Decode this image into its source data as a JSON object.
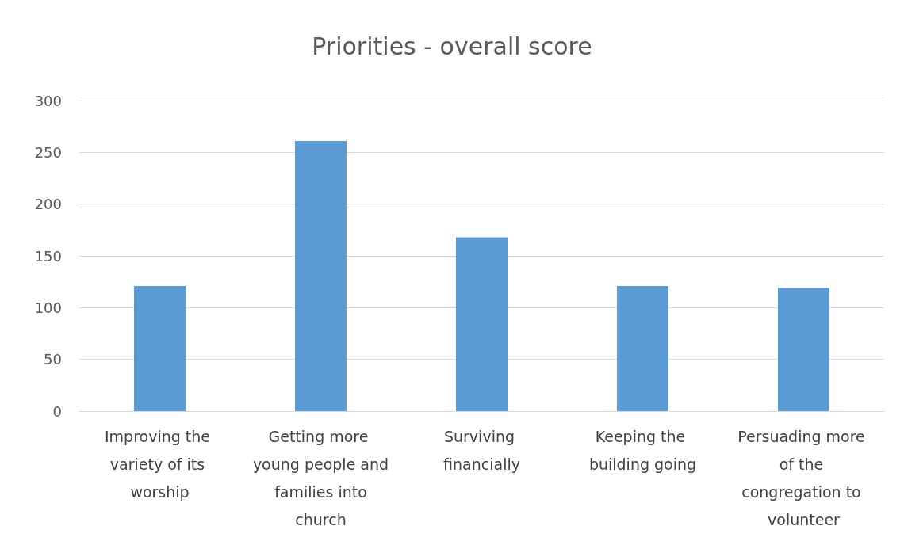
{
  "chart_data": {
    "type": "bar",
    "title": "Priorities - overall score",
    "categories": [
      "Improving the variety of its worship",
      "Getting more young people and families into church",
      "Surviving financially",
      "Keeping the building going",
      "Persuading more of the congregation to volunteer"
    ],
    "values": [
      121,
      261,
      168,
      121,
      119
    ],
    "color": "#5b9bd5",
    "ylim": [
      0,
      300
    ],
    "yticks": [
      0,
      50,
      100,
      150,
      200,
      250,
      300
    ],
    "grid": "y"
  }
}
